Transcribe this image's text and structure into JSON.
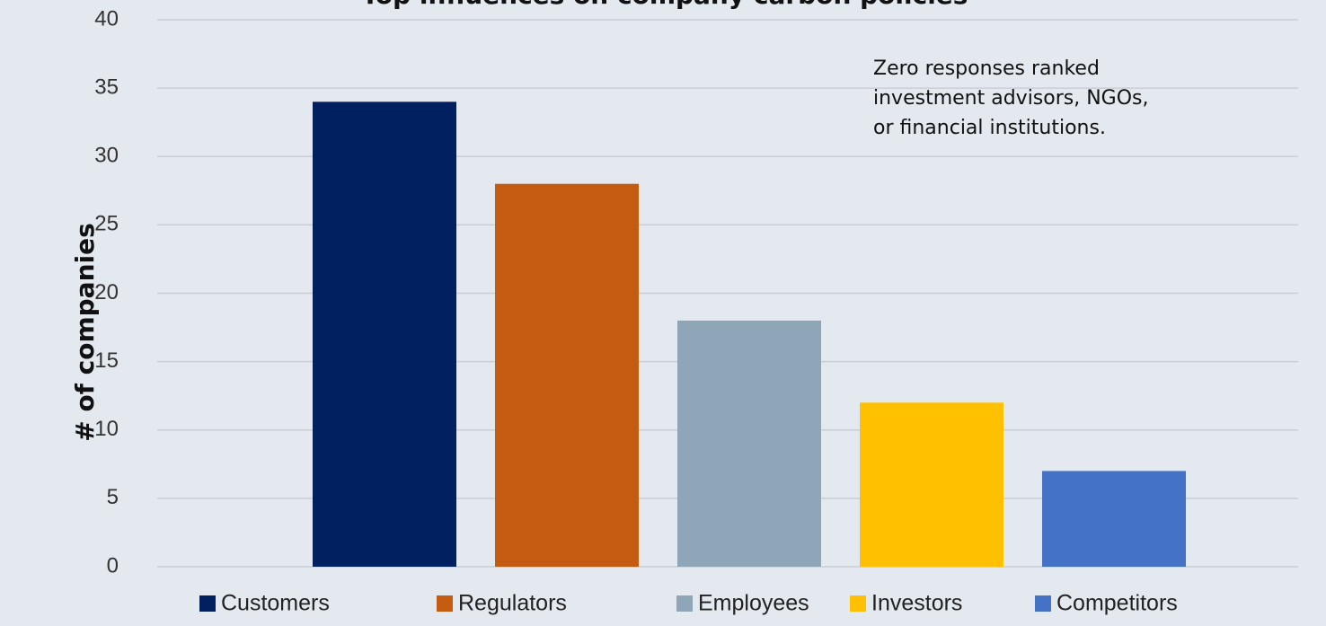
{
  "chart_data": {
    "type": "bar",
    "title": "Top influences on company carbon policies",
    "y_label": "# of companies",
    "annotation": [
      "Zero responses ranked",
      "investment advisors, NGOs,",
      "or financial institutions."
    ],
    "categories": [
      "Customers",
      "Regulators",
      "Employees",
      "Investors",
      "Competitors"
    ],
    "values": [
      34,
      28,
      18,
      12,
      7
    ],
    "colors": [
      "#002060",
      "#c55a11",
      "#8fa5b8",
      "#ffc000",
      "#4472c4"
    ],
    "ylim": [
      0,
      40
    ],
    "yticks": [
      0,
      5,
      10,
      15,
      20,
      25,
      30,
      35,
      40
    ],
    "grid": true
  }
}
